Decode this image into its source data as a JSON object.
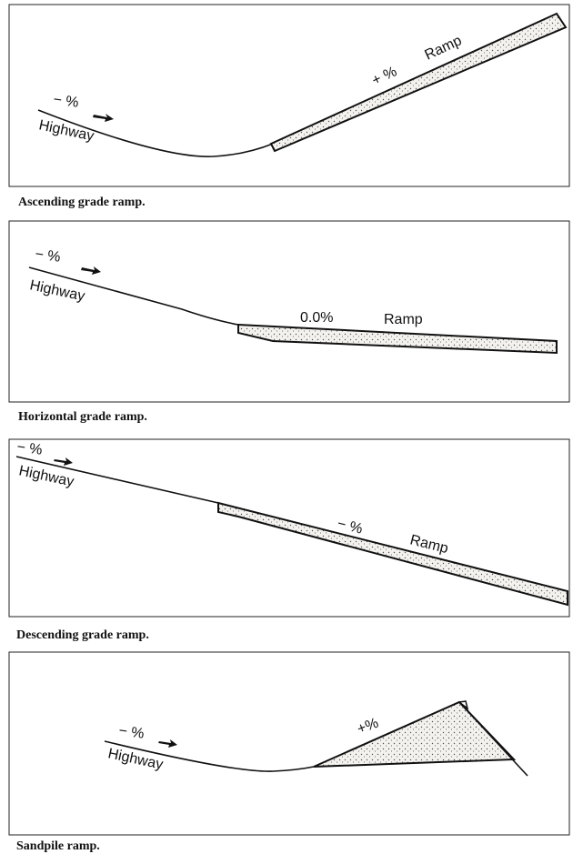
{
  "panels": [
    {
      "highway_grade": "− %",
      "highway": "Highway",
      "ramp_grade": "+ %",
      "ramp": "Ramp",
      "caption": "Ascending grade ramp."
    },
    {
      "highway_grade": "− %",
      "highway": "Highway",
      "ramp_grade": "0.0%",
      "ramp": "Ramp",
      "caption": "Horizontal grade ramp."
    },
    {
      "highway_grade": "− %",
      "highway": "Highway",
      "ramp_grade": "− %",
      "ramp": "Ramp",
      "caption": "Descending grade ramp."
    },
    {
      "highway_grade": "− %",
      "highway": "Highway",
      "ramp_grade": "+%",
      "caption": "Sandpile ramp."
    }
  ]
}
